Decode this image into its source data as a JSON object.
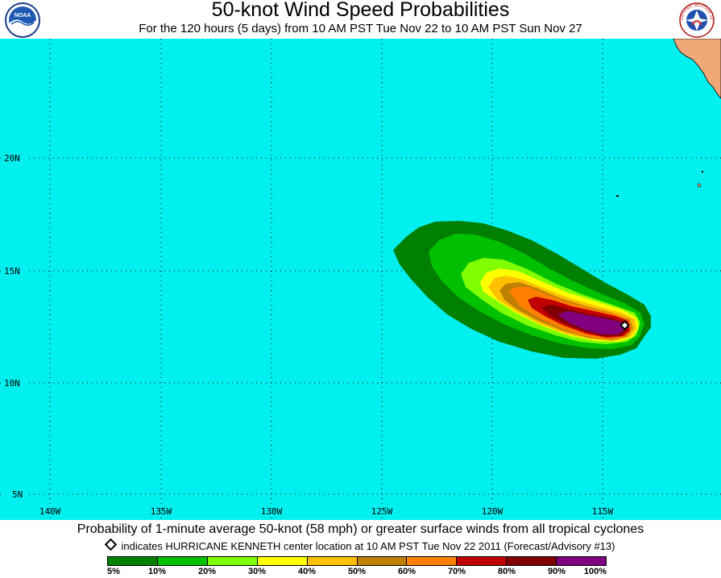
{
  "header": {
    "title": "50-knot Wind Speed Probabilities",
    "subtitle": "For the 120 hours (5 days) from 10 AM PST Tue Nov 22 to 10 AM PST Sun Nov 27",
    "left_logo": "noaa-logo-icon",
    "right_logo": "nws-logo-icon",
    "left_logo_text": "NOAA",
    "right_logo_text": "NATIONAL WEATHER SERVICE"
  },
  "map": {
    "ocean_color": "#00f0f0",
    "land_color": "#f0a878",
    "grid_color": "#000000",
    "lat_labels": [
      "20N",
      "15N",
      "10N",
      "5N"
    ],
    "lon_labels": [
      "140W",
      "135W",
      "130W",
      "125W",
      "120W",
      "115W"
    ],
    "storm_marker": "diamond-icon"
  },
  "footer": {
    "caption": "Probability of 1-minute average 50-knot (58 mph) or greater surface winds from all tropical cyclones",
    "note": "indicates HURRICANE KENNETH center location at 10 AM PST Tue Nov 22 2011 (Forecast/Advisory #13)",
    "legend_colors": [
      "#008000",
      "#00c000",
      "#80ff00",
      "#ffff00",
      "#ffc000",
      "#c08000",
      "#ff8000",
      "#c00000",
      "#800000",
      "#800080",
      "#a000a0"
    ],
    "legend_labels": [
      "5%",
      "10%",
      "20%",
      "30%",
      "40%",
      "50%",
      "60%",
      "70%",
      "80%",
      "90%",
      "100%"
    ]
  }
}
